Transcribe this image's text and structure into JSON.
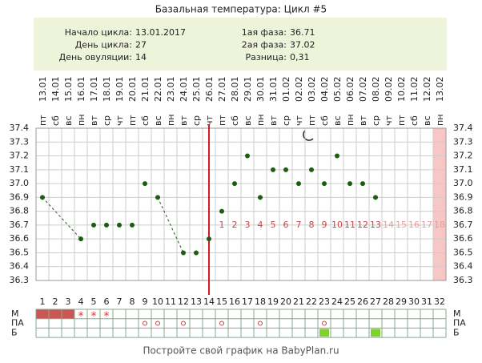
{
  "chart_data": {
    "type": "line",
    "title": "Базальная температура: Цикл #5",
    "info_left": [
      {
        "label": "Начало цикла:",
        "value": "13.01.2017"
      },
      {
        "label": "День цикла:",
        "value": 27
      },
      {
        "label": "День овуляции:",
        "value": 14
      }
    ],
    "info_right": [
      {
        "label": "1ая фаза:",
        "value": 36.71
      },
      {
        "label": "2ая фаза:",
        "value": 37.02
      },
      {
        "label": "Разница:",
        "value": "0,31"
      }
    ],
    "categories": [
      "13.01",
      "14.01",
      "15.01",
      "16.01",
      "17.01",
      "18.01",
      "19.01",
      "20.01",
      "21.01",
      "22.01",
      "23.01",
      "24.01",
      "25.01",
      "26.01",
      "27.01",
      "28.01",
      "29.01",
      "30.01",
      "31.01",
      "01.02",
      "02.02",
      "03.02",
      "04.02",
      "05.02",
      "06.02",
      "07.02",
      "08.02",
      "09.02",
      "10.02",
      "11.02",
      "12.02",
      "13.02"
    ],
    "weekdays": [
      "пт",
      "сб",
      "вс",
      "пн",
      "вт",
      "ср",
      "чт",
      "пт",
      "сб",
      "вс",
      "пн",
      "вт",
      "ср",
      "чт",
      "пт",
      "сб",
      "вс",
      "пн",
      "вт",
      "ср",
      "чт",
      "пт",
      "сб",
      "вс",
      "пн",
      "вт",
      "ср",
      "чт",
      "пт",
      "сб",
      "вс",
      "пн"
    ],
    "day_numbers": [
      1,
      2,
      3,
      4,
      5,
      6,
      7,
      8,
      9,
      10,
      11,
      12,
      13,
      14,
      15,
      16,
      17,
      18,
      19,
      20,
      21,
      22,
      23,
      24,
      25,
      26,
      27,
      28,
      29,
      30,
      31,
      32
    ],
    "values": [
      36.9,
      null,
      null,
      36.6,
      36.7,
      36.7,
      36.7,
      36.7,
      37.0,
      36.9,
      null,
      36.5,
      36.5,
      36.6,
      36.8,
      37.0,
      37.2,
      36.9,
      37.1,
      37.1,
      37.0,
      37.1,
      37.0,
      37.2,
      37.0,
      37.0,
      36.9,
      null,
      null,
      null,
      null,
      null
    ],
    "color": "#1e5c12",
    "ylim": [
      36.3,
      37.4
    ],
    "yticks": [
      37.4,
      37.3,
      37.2,
      37.1,
      {
        "value": 37.0,
        "label": "37.0"
      },
      36.9,
      36.8,
      36.7,
      36.6,
      36.5,
      36.4,
      36.3
    ],
    "grid": true,
    "luteal_days": [
      1,
      2,
      3,
      4,
      5,
      6,
      7,
      8,
      9,
      10,
      11,
      12,
      13,
      14,
      15,
      16,
      17,
      18
    ],
    "rows": [
      {
        "label": "М",
        "fill_days": [
          1,
          2,
          3
        ],
        "fill_color": "#cc5555",
        "symbol": "*",
        "symbol_days": [
          4,
          5,
          6
        ]
      },
      {
        "label": "ПА",
        "circle_days": [
          9,
          10,
          12,
          15,
          18,
          23
        ]
      },
      {
        "label": "Б",
        "box_days": [
          23,
          27
        ],
        "box_color": "#7fd130"
      }
    ],
    "footer": "Постройте свой график на BabyPlan.ru"
  }
}
